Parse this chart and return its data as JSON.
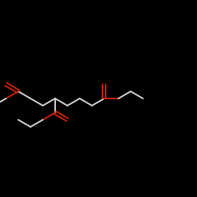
{
  "background_color": "#000000",
  "bond_color": "#d4d4d4",
  "oxygen_color": "#cc2200",
  "line_width": 1.4,
  "figsize": [
    2.5,
    2.5
  ],
  "dpi": 100
}
